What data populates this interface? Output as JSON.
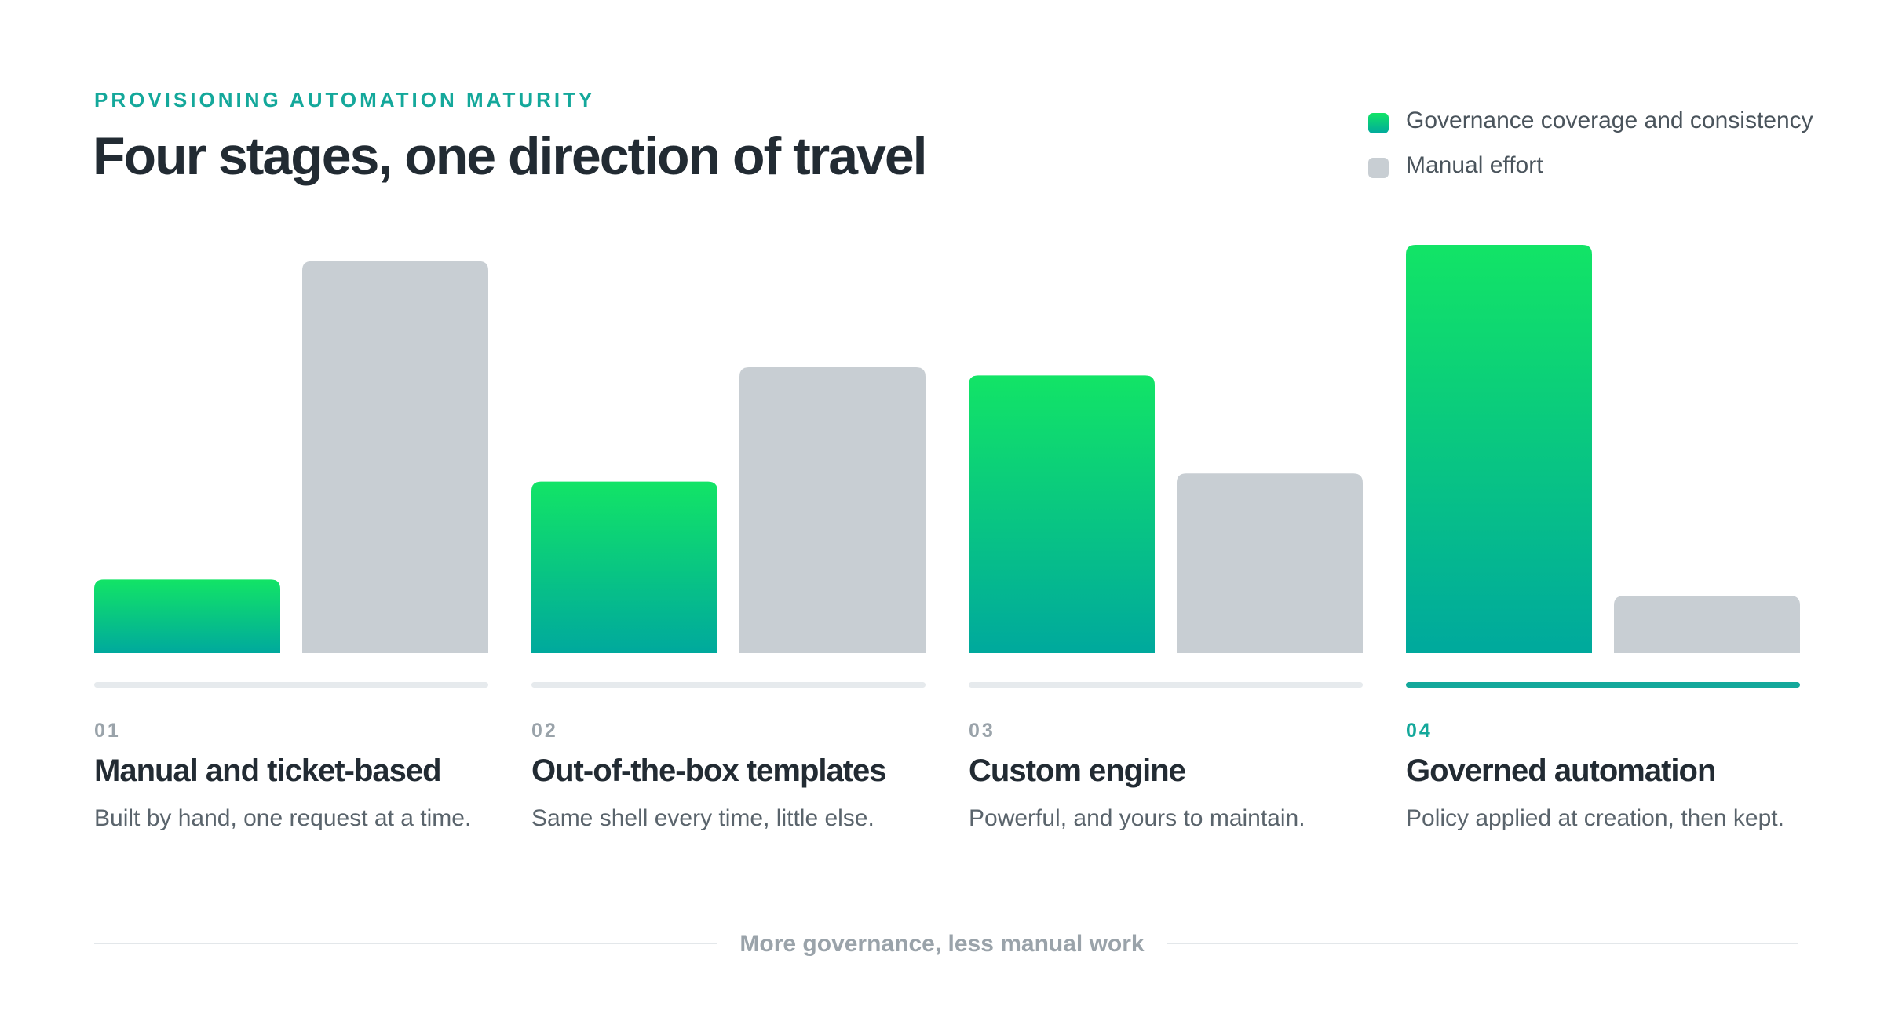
{
  "chart_data": {
    "type": "bar",
    "eyebrow": "PROVISIONING AUTOMATION MATURITY",
    "title": "Four stages, one direction of travel",
    "categories": [
      "Manual and ticket-based",
      "Out-of-the-box templates",
      "Custom engine",
      "Governed automation"
    ],
    "stage_numbers": [
      "01",
      "02",
      "03",
      "04"
    ],
    "descriptions": [
      "Built by hand, one request at a time.",
      "Same shell every time, little else.",
      "Powerful, and yours to maintain.",
      "Policy applied at creation, then kept."
    ],
    "series": [
      {
        "name": "Governance coverage and consistency",
        "color": "#12e466",
        "gradient_to": "#00a99d",
        "values": [
          18,
          42,
          68,
          100
        ]
      },
      {
        "name": "Manual effort",
        "color": "#c8ced3",
        "values": [
          96,
          70,
          44,
          14
        ]
      }
    ],
    "ylim": [
      0,
      100
    ],
    "legend": "top-right",
    "note": "More governance, less manual work"
  }
}
